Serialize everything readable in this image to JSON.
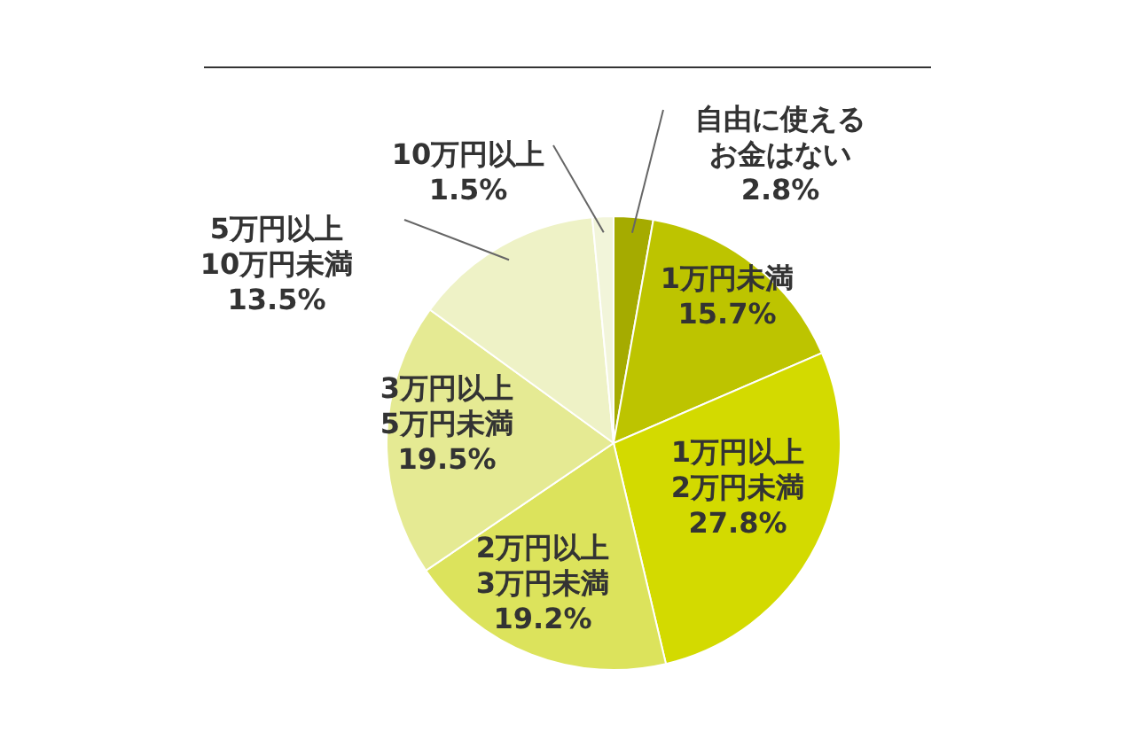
{
  "chart_data": {
    "type": "pie",
    "categories": [
      "自由に使えるお金はない",
      "1万円未満",
      "1万円以上2万円未満",
      "2万円以上3万円未満",
      "3万円以上5万円未満",
      "5万円以上10万円未満",
      "10万円以上"
    ],
    "values": [
      2.8,
      15.7,
      27.8,
      19.2,
      19.5,
      13.5,
      1.5
    ],
    "colors": [
      "#a5ab00",
      "#bdc400",
      "#d3da00",
      "#dce35c",
      "#e5ea93",
      "#eef2c6",
      "#f2f5da"
    ],
    "value_labels": [
      "2.8%",
      "15.7%",
      "27.8%",
      "19.2%",
      "19.5%",
      "13.5%",
      "1.5%"
    ]
  }
}
